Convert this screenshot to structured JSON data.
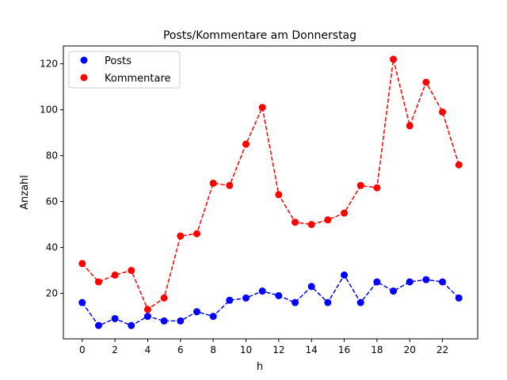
{
  "chart_data": {
    "type": "line",
    "title": "Posts/Kommentare am Donnerstag",
    "xlabel": "h",
    "ylabel": "Anzahl",
    "x": [
      0,
      1,
      2,
      3,
      4,
      5,
      6,
      7,
      8,
      9,
      10,
      11,
      12,
      13,
      14,
      15,
      16,
      17,
      18,
      19,
      20,
      21,
      22,
      23
    ],
    "xticks": [
      0,
      2,
      4,
      6,
      8,
      10,
      12,
      14,
      16,
      18,
      20,
      22
    ],
    "yticks": [
      20,
      40,
      60,
      80,
      100,
      120
    ],
    "xlim": [
      -1.15,
      24.15
    ],
    "ylim": [
      0.2,
      127.8
    ],
    "grid": false,
    "legend_position": "top-left",
    "series": [
      {
        "name": "Posts",
        "color": "#0000ff",
        "style": "dashed with circle markers",
        "values": [
          16,
          6,
          9,
          6,
          10,
          8,
          8,
          12,
          10,
          17,
          18,
          21,
          19,
          16,
          23,
          16,
          28,
          16,
          25,
          21,
          25,
          26,
          25,
          18
        ]
      },
      {
        "name": "Kommentare",
        "color": "#ff0000",
        "style": "dashed with circle markers",
        "values": [
          33,
          25,
          28,
          30,
          13,
          18,
          45,
          46,
          68,
          67,
          85,
          101,
          63,
          51,
          50,
          52,
          55,
          67,
          66,
          122,
          93,
          112,
          99,
          76
        ]
      }
    ]
  }
}
